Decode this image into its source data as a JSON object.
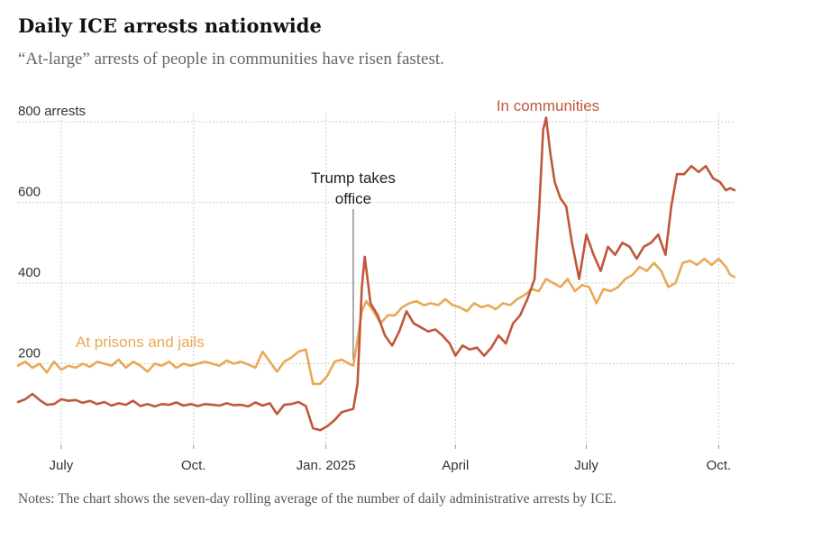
{
  "header": {
    "title": "Daily ICE arrests nationwide",
    "subtitle": "“At-large” arrests of people in communities have risen fastest."
  },
  "notes": "Notes: The chart shows the seven-day rolling average of the number of daily administrative arrests by ICE.",
  "colors": {
    "communities": "#c0573a",
    "prisons": "#e9a955",
    "grid": "#cfcfcf",
    "annotation_line": "#555555"
  },
  "chart_data": {
    "type": "line",
    "title": "Daily ICE arrests nationwide",
    "xlabel": "",
    "ylabel": "",
    "x_ticks": [
      {
        "label": "July",
        "date": "2024-07-01"
      },
      {
        "label": "Oct.",
        "date": "2024-10-01"
      },
      {
        "label": "Jan. 2025",
        "date": "2025-01-01"
      },
      {
        "label": "April",
        "date": "2025-04-01"
      },
      {
        "label": "July",
        "date": "2025-07-01"
      },
      {
        "label": "Oct.",
        "date": "2025-10-01"
      }
    ],
    "y_ticks": [
      {
        "value": 200,
        "label": "200"
      },
      {
        "value": 400,
        "label": "400"
      },
      {
        "value": 600,
        "label": "600"
      },
      {
        "value": 800,
        "label": "800 arrests"
      }
    ],
    "ylim": [
      0,
      800
    ],
    "xlim": [
      "2024-06-01",
      "2025-10-12"
    ],
    "grid": true,
    "annotation": {
      "text_line1": "Trump takes",
      "text_line2": "office",
      "date": "2025-01-20"
    },
    "series": [
      {
        "name": "In communities",
        "color": "#c0573a",
        "points": [
          [
            "2024-06-01",
            105
          ],
          [
            "2024-06-06",
            112
          ],
          [
            "2024-06-11",
            125
          ],
          [
            "2024-06-16",
            110
          ],
          [
            "2024-06-21",
            98
          ],
          [
            "2024-06-26",
            100
          ],
          [
            "2024-07-01",
            112
          ],
          [
            "2024-07-06",
            108
          ],
          [
            "2024-07-11",
            110
          ],
          [
            "2024-07-16",
            103
          ],
          [
            "2024-07-21",
            108
          ],
          [
            "2024-07-26",
            100
          ],
          [
            "2024-07-31",
            105
          ],
          [
            "2024-08-05",
            96
          ],
          [
            "2024-08-10",
            102
          ],
          [
            "2024-08-15",
            98
          ],
          [
            "2024-08-20",
            108
          ],
          [
            "2024-08-25",
            95
          ],
          [
            "2024-08-30",
            100
          ],
          [
            "2024-09-04",
            94
          ],
          [
            "2024-09-09",
            100
          ],
          [
            "2024-09-14",
            98
          ],
          [
            "2024-09-19",
            104
          ],
          [
            "2024-09-24",
            96
          ],
          [
            "2024-09-29",
            100
          ],
          [
            "2024-10-04",
            95
          ],
          [
            "2024-10-09",
            100
          ],
          [
            "2024-10-14",
            98
          ],
          [
            "2024-10-19",
            96
          ],
          [
            "2024-10-24",
            102
          ],
          [
            "2024-10-29",
            97
          ],
          [
            "2024-11-03",
            98
          ],
          [
            "2024-11-08",
            94
          ],
          [
            "2024-11-13",
            104
          ],
          [
            "2024-11-18",
            96
          ],
          [
            "2024-11-23",
            102
          ],
          [
            "2024-11-28",
            75
          ],
          [
            "2024-12-03",
            98
          ],
          [
            "2024-12-08",
            100
          ],
          [
            "2024-12-13",
            105
          ],
          [
            "2024-12-18",
            95
          ],
          [
            "2024-12-23",
            40
          ],
          [
            "2024-12-28",
            35
          ],
          [
            "2025-01-02",
            45
          ],
          [
            "2025-01-07",
            60
          ],
          [
            "2025-01-12",
            80
          ],
          [
            "2025-01-17",
            85
          ],
          [
            "2025-01-20",
            88
          ],
          [
            "2025-01-23",
            150
          ],
          [
            "2025-01-26",
            390
          ],
          [
            "2025-01-28",
            465
          ],
          [
            "2025-02-01",
            350
          ],
          [
            "2025-02-06",
            320
          ],
          [
            "2025-02-11",
            270
          ],
          [
            "2025-02-16",
            245
          ],
          [
            "2025-02-21",
            280
          ],
          [
            "2025-02-26",
            330
          ],
          [
            "2025-03-03",
            300
          ],
          [
            "2025-03-08",
            290
          ],
          [
            "2025-03-13",
            280
          ],
          [
            "2025-03-18",
            285
          ],
          [
            "2025-03-23",
            270
          ],
          [
            "2025-03-28",
            250
          ],
          [
            "2025-04-01",
            220
          ],
          [
            "2025-04-06",
            245
          ],
          [
            "2025-04-11",
            235
          ],
          [
            "2025-04-16",
            240
          ],
          [
            "2025-04-21",
            220
          ],
          [
            "2025-04-26",
            240
          ],
          [
            "2025-05-01",
            270
          ],
          [
            "2025-05-06",
            250
          ],
          [
            "2025-05-11",
            300
          ],
          [
            "2025-05-16",
            320
          ],
          [
            "2025-05-21",
            360
          ],
          [
            "2025-05-26",
            410
          ],
          [
            "2025-05-29",
            570
          ],
          [
            "2025-06-01",
            780
          ],
          [
            "2025-06-03",
            810
          ],
          [
            "2025-06-06",
            720
          ],
          [
            "2025-06-09",
            650
          ],
          [
            "2025-06-13",
            610
          ],
          [
            "2025-06-17",
            590
          ],
          [
            "2025-06-21",
            500
          ],
          [
            "2025-06-26",
            410
          ],
          [
            "2025-07-01",
            520
          ],
          [
            "2025-07-06",
            470
          ],
          [
            "2025-07-11",
            430
          ],
          [
            "2025-07-16",
            490
          ],
          [
            "2025-07-21",
            470
          ],
          [
            "2025-07-26",
            500
          ],
          [
            "2025-07-31",
            490
          ],
          [
            "2025-08-05",
            460
          ],
          [
            "2025-08-10",
            490
          ],
          [
            "2025-08-15",
            500
          ],
          [
            "2025-08-20",
            520
          ],
          [
            "2025-08-25",
            470
          ],
          [
            "2025-08-29",
            590
          ],
          [
            "2025-09-02",
            670
          ],
          [
            "2025-09-07",
            670
          ],
          [
            "2025-09-12",
            690
          ],
          [
            "2025-09-17",
            675
          ],
          [
            "2025-09-22",
            690
          ],
          [
            "2025-09-27",
            660
          ],
          [
            "2025-10-02",
            650
          ],
          [
            "2025-10-06",
            630
          ],
          [
            "2025-10-09",
            635
          ],
          [
            "2025-10-12",
            630
          ]
        ]
      },
      {
        "name": "At prisons and jails",
        "color": "#e9a955",
        "points": [
          [
            "2024-06-01",
            195
          ],
          [
            "2024-06-06",
            205
          ],
          [
            "2024-06-11",
            190
          ],
          [
            "2024-06-16",
            200
          ],
          [
            "2024-06-21",
            178
          ],
          [
            "2024-06-26",
            205
          ],
          [
            "2024-07-01",
            185
          ],
          [
            "2024-07-06",
            195
          ],
          [
            "2024-07-11",
            190
          ],
          [
            "2024-07-16",
            200
          ],
          [
            "2024-07-21",
            192
          ],
          [
            "2024-07-26",
            205
          ],
          [
            "2024-07-31",
            200
          ],
          [
            "2024-08-05",
            195
          ],
          [
            "2024-08-10",
            210
          ],
          [
            "2024-08-15",
            190
          ],
          [
            "2024-08-20",
            205
          ],
          [
            "2024-08-25",
            195
          ],
          [
            "2024-08-30",
            180
          ],
          [
            "2024-09-04",
            200
          ],
          [
            "2024-09-09",
            195
          ],
          [
            "2024-09-14",
            205
          ],
          [
            "2024-09-19",
            190
          ],
          [
            "2024-09-24",
            200
          ],
          [
            "2024-09-29",
            195
          ],
          [
            "2024-10-04",
            200
          ],
          [
            "2024-10-09",
            205
          ],
          [
            "2024-10-14",
            200
          ],
          [
            "2024-10-19",
            195
          ],
          [
            "2024-10-24",
            208
          ],
          [
            "2024-10-29",
            200
          ],
          [
            "2024-11-03",
            205
          ],
          [
            "2024-11-08",
            198
          ],
          [
            "2024-11-13",
            190
          ],
          [
            "2024-11-18",
            230
          ],
          [
            "2024-11-23",
            205
          ],
          [
            "2024-11-28",
            180
          ],
          [
            "2024-12-03",
            205
          ],
          [
            "2024-12-08",
            215
          ],
          [
            "2024-12-13",
            230
          ],
          [
            "2024-12-18",
            235
          ],
          [
            "2024-12-23",
            150
          ],
          [
            "2024-12-28",
            150
          ],
          [
            "2025-01-02",
            170
          ],
          [
            "2025-01-07",
            205
          ],
          [
            "2025-01-12",
            210
          ],
          [
            "2025-01-17",
            200
          ],
          [
            "2025-01-20",
            195
          ],
          [
            "2025-01-23",
            260
          ],
          [
            "2025-01-26",
            330
          ],
          [
            "2025-01-29",
            355
          ],
          [
            "2025-02-03",
            330
          ],
          [
            "2025-02-08",
            300
          ],
          [
            "2025-02-13",
            320
          ],
          [
            "2025-02-18",
            320
          ],
          [
            "2025-02-23",
            340
          ],
          [
            "2025-02-28",
            350
          ],
          [
            "2025-03-05",
            355
          ],
          [
            "2025-03-10",
            345
          ],
          [
            "2025-03-15",
            350
          ],
          [
            "2025-03-20",
            345
          ],
          [
            "2025-03-25",
            360
          ],
          [
            "2025-03-30",
            345
          ],
          [
            "2025-04-04",
            340
          ],
          [
            "2025-04-09",
            330
          ],
          [
            "2025-04-14",
            350
          ],
          [
            "2025-04-19",
            340
          ],
          [
            "2025-04-24",
            345
          ],
          [
            "2025-04-29",
            335
          ],
          [
            "2025-05-04",
            350
          ],
          [
            "2025-05-09",
            345
          ],
          [
            "2025-05-14",
            360
          ],
          [
            "2025-05-19",
            370
          ],
          [
            "2025-05-24",
            385
          ],
          [
            "2025-05-29",
            380
          ],
          [
            "2025-06-03",
            410
          ],
          [
            "2025-06-08",
            400
          ],
          [
            "2025-06-13",
            390
          ],
          [
            "2025-06-18",
            410
          ],
          [
            "2025-06-23",
            380
          ],
          [
            "2025-06-28",
            395
          ],
          [
            "2025-07-03",
            390
          ],
          [
            "2025-07-08",
            350
          ],
          [
            "2025-07-13",
            385
          ],
          [
            "2025-07-18",
            380
          ],
          [
            "2025-07-23",
            390
          ],
          [
            "2025-07-28",
            410
          ],
          [
            "2025-08-02",
            420
          ],
          [
            "2025-08-07",
            440
          ],
          [
            "2025-08-12",
            430
          ],
          [
            "2025-08-17",
            450
          ],
          [
            "2025-08-22",
            430
          ],
          [
            "2025-08-27",
            390
          ],
          [
            "2025-09-01",
            400
          ],
          [
            "2025-09-06",
            450
          ],
          [
            "2025-09-11",
            455
          ],
          [
            "2025-09-16",
            445
          ],
          [
            "2025-09-21",
            460
          ],
          [
            "2025-09-26",
            445
          ],
          [
            "2025-10-01",
            460
          ],
          [
            "2025-10-06",
            440
          ],
          [
            "2025-10-09",
            420
          ],
          [
            "2025-10-12",
            415
          ]
        ]
      }
    ]
  }
}
